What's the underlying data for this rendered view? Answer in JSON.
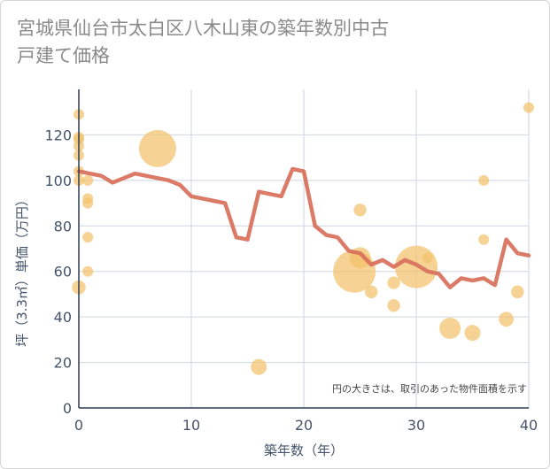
{
  "chart_data": {
    "type": "scatter",
    "title": "宮城県仙台市太白区八木山東の築年数別中古戸建て価格",
    "xlabel": "築年数（年）",
    "ylabel": "坪（3.3㎡）単価（万円）",
    "xlim": [
      0,
      40
    ],
    "ylim": [
      0,
      140
    ],
    "xticks": [
      0,
      10,
      20,
      30,
      40
    ],
    "yticks": [
      0,
      20,
      40,
      60,
      80,
      100,
      120
    ],
    "grid": "vertical and horizontal",
    "note": "円の大きさは、取引のあった物件面積を示す",
    "colors": {
      "bubble": "#f3c26b",
      "line": "#d9735e",
      "grid": "#ccd6e0",
      "text": "#44546a"
    },
    "series": [
      {
        "type": "scatter",
        "points": [
          {
            "x": 0,
            "y": 129,
            "size": 1
          },
          {
            "x": 0,
            "y": 119,
            "size": 1
          },
          {
            "x": 0,
            "y": 118,
            "size": 1
          },
          {
            "x": 0,
            "y": 115,
            "size": 1
          },
          {
            "x": 0,
            "y": 111,
            "size": 1
          },
          {
            "x": 0,
            "y": 104,
            "size": 1
          },
          {
            "x": 0,
            "y": 100,
            "size": 1
          },
          {
            "x": 0,
            "y": 53,
            "size": 1.3
          },
          {
            "x": 0.8,
            "y": 100,
            "size": 1
          },
          {
            "x": 0.8,
            "y": 92,
            "size": 1
          },
          {
            "x": 0.8,
            "y": 90,
            "size": 1
          },
          {
            "x": 0.8,
            "y": 75,
            "size": 1
          },
          {
            "x": 0.8,
            "y": 60,
            "size": 1
          },
          {
            "x": 7,
            "y": 114,
            "size": 3.5
          },
          {
            "x": 16,
            "y": 18,
            "size": 1.5
          },
          {
            "x": 24.5,
            "y": 60,
            "size": 4
          },
          {
            "x": 25,
            "y": 87,
            "size": 1.2
          },
          {
            "x": 25,
            "y": 66,
            "size": 2
          },
          {
            "x": 26,
            "y": 51,
            "size": 1.2
          },
          {
            "x": 28,
            "y": 55,
            "size": 1.2
          },
          {
            "x": 28,
            "y": 45,
            "size": 1.2
          },
          {
            "x": 30,
            "y": 62,
            "size": 4
          },
          {
            "x": 31,
            "y": 66,
            "size": 1
          },
          {
            "x": 33,
            "y": 35,
            "size": 2
          },
          {
            "x": 35,
            "y": 33,
            "size": 1.5
          },
          {
            "x": 36,
            "y": 100,
            "size": 1
          },
          {
            "x": 36,
            "y": 74,
            "size": 1
          },
          {
            "x": 38,
            "y": 39,
            "size": 1.4
          },
          {
            "x": 39,
            "y": 51,
            "size": 1.2
          },
          {
            "x": 40,
            "y": 132,
            "size": 1
          }
        ]
      },
      {
        "type": "line",
        "x": [
          0,
          1,
          2,
          3,
          4,
          5,
          6,
          7,
          8,
          9,
          10,
          11,
          12,
          13,
          14,
          15,
          16,
          17,
          18,
          19,
          20,
          21,
          22,
          23,
          24,
          25,
          26,
          27,
          28,
          29,
          30,
          31,
          32,
          33,
          34,
          35,
          36,
          37,
          38,
          39,
          40
        ],
        "y": [
          104,
          103,
          102,
          99,
          101,
          103,
          102,
          101,
          100,
          98,
          93,
          92,
          91,
          90,
          75,
          74,
          95,
          94,
          93,
          105,
          104,
          80,
          76,
          75,
          69,
          68,
          63,
          65,
          62,
          65,
          63,
          60,
          59,
          53,
          57,
          56,
          57,
          54,
          74,
          68,
          67
        ]
      }
    ]
  }
}
